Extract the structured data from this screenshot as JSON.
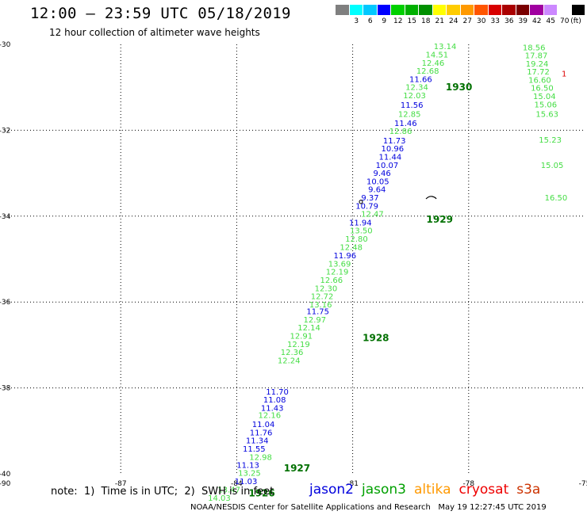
{
  "header": {
    "title": "12:00 – 23:59 UTC 05/18/2019",
    "subtitle": "12 hour collection of altimeter wave heights"
  },
  "colorbar": {
    "colors": [
      "#7f7f7f",
      "#00ffff",
      "#00c8ff",
      "#0000ff",
      "#00d000",
      "#00b000",
      "#009000",
      "#ffff00",
      "#ffcc00",
      "#ff9900",
      "#ff5500",
      "#d80000",
      "#aa0000",
      "#7a0000",
      "#a000a0",
      "#cc88ff",
      "#ffffff",
      "#000000"
    ],
    "labels": [
      "3",
      "6",
      "9",
      "12",
      "15",
      "18",
      "21",
      "24",
      "27",
      "30",
      "33",
      "36",
      "39",
      "42",
      "45",
      "70"
    ],
    "unit": "(ft)"
  },
  "map": {
    "lon_range": [
      -90,
      -75
    ],
    "lat_range": [
      -40,
      -30
    ],
    "x_ticks": [
      {
        "value": -87,
        "label": "-87"
      },
      {
        "value": -84,
        "label": "-84"
      },
      {
        "value": -81,
        "label": "-81"
      },
      {
        "value": -78,
        "label": "-78"
      },
      {
        "value": -75,
        "label": "-75"
      }
    ],
    "y_ticks": [
      {
        "value": -30,
        "label": "-30"
      },
      {
        "value": -32,
        "label": "-32"
      },
      {
        "value": -34,
        "label": "-34"
      },
      {
        "value": -36,
        "label": "-36"
      },
      {
        "value": -38,
        "label": "-38"
      },
      {
        "value": -40,
        "label": "-40"
      }
    ],
    "corner_label": "-90",
    "grid": "dotted",
    "point_colors": {
      "blue": "#0000dd",
      "green": "#44dd44",
      "time": "#007000",
      "red": "#dd0000"
    },
    "tracks": [
      {
        "name": "jason2",
        "points": [
          {
            "lon": -79.24,
            "lat": -30.8,
            "v": "11.66",
            "c": "blue"
          },
          {
            "lon": -79.47,
            "lat": -31.4,
            "v": "11.56",
            "c": "blue"
          },
          {
            "lon": -79.63,
            "lat": -31.83,
            "v": "11.46",
            "c": "blue"
          },
          {
            "lon": -79.92,
            "lat": -32.23,
            "v": "11.73",
            "c": "blue"
          },
          {
            "lon": -79.97,
            "lat": -32.42,
            "v": "10.96",
            "c": "blue"
          },
          {
            "lon": -80.03,
            "lat": -32.61,
            "v": "11.44",
            "c": "blue"
          },
          {
            "lon": -80.11,
            "lat": -32.8,
            "v": "10.07",
            "c": "blue"
          },
          {
            "lon": -80.24,
            "lat": -32.99,
            "v": "9.46",
            "c": "blue"
          },
          {
            "lon": -80.35,
            "lat": -33.18,
            "v": "10.05",
            "c": "blue"
          },
          {
            "lon": -80.37,
            "lat": -33.37,
            "v": "9.64",
            "c": "blue"
          },
          {
            "lon": -80.55,
            "lat": -33.56,
            "v": "9.37",
            "c": "blue"
          },
          {
            "lon": -80.63,
            "lat": -33.75,
            "v": "10.79",
            "c": "blue"
          },
          {
            "lon": -80.8,
            "lat": -34.14,
            "v": "11.94",
            "c": "blue"
          },
          {
            "lon": -81.2,
            "lat": -34.91,
            "v": "11.96",
            "c": "blue"
          },
          {
            "lon": -81.9,
            "lat": -36.21,
            "v": "11.75",
            "c": "blue"
          },
          {
            "lon": -82.95,
            "lat": -38.08,
            "v": "11.70",
            "c": "blue"
          },
          {
            "lon": -83.02,
            "lat": -38.27,
            "v": "11.08",
            "c": "blue"
          },
          {
            "lon": -83.08,
            "lat": -38.46,
            "v": "11.43",
            "c": "blue"
          },
          {
            "lon": -83.31,
            "lat": -38.84,
            "v": "11.04",
            "c": "blue"
          },
          {
            "lon": -83.37,
            "lat": -39.03,
            "v": "11.76",
            "c": "blue"
          },
          {
            "lon": -83.47,
            "lat": -39.22,
            "v": "11.34",
            "c": "blue"
          },
          {
            "lon": -83.55,
            "lat": -39.41,
            "v": "11.55",
            "c": "blue"
          },
          {
            "lon": -83.71,
            "lat": -39.79,
            "v": "11.13",
            "c": "blue"
          },
          {
            "lon": -83.76,
            "lat": -40.17,
            "v": "11.03",
            "c": "blue"
          }
        ]
      },
      {
        "name": "jason3",
        "points": [
          {
            "lon": -78.61,
            "lat": -30.04,
            "v": "13.14",
            "c": "green"
          },
          {
            "lon": -78.82,
            "lat": -30.23,
            "v": "14.51",
            "c": "green"
          },
          {
            "lon": -78.92,
            "lat": -30.42,
            "v": "12.46",
            "c": "green"
          },
          {
            "lon": -79.06,
            "lat": -30.61,
            "v": "12.68",
            "c": "green"
          },
          {
            "lon": -79.34,
            "lat": -30.99,
            "v": "12.34",
            "c": "green"
          },
          {
            "lon": -79.4,
            "lat": -31.18,
            "v": "12.03",
            "c": "green"
          },
          {
            "lon": -79.53,
            "lat": -31.61,
            "v": "12.85",
            "c": "green"
          },
          {
            "lon": -79.76,
            "lat": -32.01,
            "v": "12.86",
            "c": "green"
          },
          {
            "lon": -80.49,
            "lat": -33.94,
            "v": "12.47",
            "c": "green"
          },
          {
            "lon": -80.78,
            "lat": -34.33,
            "v": "13.50",
            "c": "green"
          },
          {
            "lon": -80.9,
            "lat": -34.52,
            "v": "12.80",
            "c": "green"
          },
          {
            "lon": -81.04,
            "lat": -34.71,
            "v": "12.48",
            "c": "green"
          },
          {
            "lon": -81.34,
            "lat": -35.1,
            "v": "13.69",
            "c": "green"
          },
          {
            "lon": -81.4,
            "lat": -35.29,
            "v": "12.19",
            "c": "green"
          },
          {
            "lon": -81.55,
            "lat": -35.48,
            "v": "12.66",
            "c": "green"
          },
          {
            "lon": -81.69,
            "lat": -35.67,
            "v": "12.30",
            "c": "green"
          },
          {
            "lon": -81.79,
            "lat": -35.86,
            "v": "12.72",
            "c": "green"
          },
          {
            "lon": -81.83,
            "lat": -36.05,
            "v": "13.16",
            "c": "green"
          },
          {
            "lon": -81.98,
            "lat": -36.4,
            "v": "12.97",
            "c": "green"
          },
          {
            "lon": -82.13,
            "lat": -36.59,
            "v": "12.14",
            "c": "green"
          },
          {
            "lon": -82.33,
            "lat": -36.78,
            "v": "12.91",
            "c": "green"
          },
          {
            "lon": -82.4,
            "lat": -36.97,
            "v": "12.19",
            "c": "green"
          },
          {
            "lon": -82.57,
            "lat": -37.16,
            "v": "12.36",
            "c": "green"
          },
          {
            "lon": -82.65,
            "lat": -37.35,
            "v": "12.24",
            "c": "green"
          },
          {
            "lon": -83.15,
            "lat": -38.63,
            "v": "12.16",
            "c": "green"
          },
          {
            "lon": -83.38,
            "lat": -39.6,
            "v": "12.98",
            "c": "green"
          },
          {
            "lon": -83.67,
            "lat": -39.97,
            "v": "13.25",
            "c": "green"
          },
          {
            "lon": -84.2,
            "lat": -40.36,
            "v": "13.47",
            "c": "green"
          },
          {
            "lon": -84.45,
            "lat": -40.55,
            "v": "14.03",
            "c": "green"
          }
        ]
      },
      {
        "name": "right-track",
        "points": [
          {
            "lon": -76.31,
            "lat": -30.06,
            "v": "18.56",
            "c": "green"
          },
          {
            "lon": -76.25,
            "lat": -30.25,
            "v": "17.87",
            "c": "green"
          },
          {
            "lon": -76.23,
            "lat": -30.44,
            "v": "19.24",
            "c": "green"
          },
          {
            "lon": -76.2,
            "lat": -30.63,
            "v": "17.72",
            "c": "green"
          },
          {
            "lon": -76.16,
            "lat": -30.82,
            "v": "16.60",
            "c": "green"
          },
          {
            "lon": -76.1,
            "lat": -31.01,
            "v": "16.50",
            "c": "green"
          },
          {
            "lon": -76.04,
            "lat": -31.2,
            "v": "15.04",
            "c": "green"
          },
          {
            "lon": -76.01,
            "lat": -31.39,
            "v": "15.06",
            "c": "green"
          },
          {
            "lon": -75.97,
            "lat": -31.61,
            "v": "15.63",
            "c": "green"
          },
          {
            "lon": -75.89,
            "lat": -32.21,
            "v": "15.23",
            "c": "green"
          },
          {
            "lon": -75.84,
            "lat": -32.8,
            "v": "15.05",
            "c": "green"
          },
          {
            "lon": -75.74,
            "lat": -33.56,
            "v": "16.50",
            "c": "green"
          },
          {
            "lon": -75.53,
            "lat": -30.67,
            "v": "1",
            "c": "red"
          }
        ]
      }
    ],
    "time_labels": [
      {
        "lon": -78.25,
        "lat": -30.98,
        "t": "1930"
      },
      {
        "lon": -78.75,
        "lat": -34.06,
        "t": "1929"
      },
      {
        "lon": -80.4,
        "lat": -36.82,
        "t": "1928"
      },
      {
        "lon": -82.44,
        "lat": -39.85,
        "t": "1927"
      },
      {
        "lon": -83.35,
        "lat": -40.43,
        "t": "1926"
      }
    ]
  },
  "note": "note:  1)  Time is in UTC;  2)  SWH is in feet",
  "legend": [
    {
      "label": "jason2",
      "color": "#0000dd"
    },
    {
      "label": "jason3",
      "color": "#00a000"
    },
    {
      "label": "altika",
      "color": "#ff9900"
    },
    {
      "label": "cryosat",
      "color": "#ee0000"
    },
    {
      "label": "s3a",
      "color": "#cc3300"
    }
  ],
  "footer": "NOAA/NESDIS Center for Satellite Applications and Research   May 19 12:27:45 UTC 2019"
}
